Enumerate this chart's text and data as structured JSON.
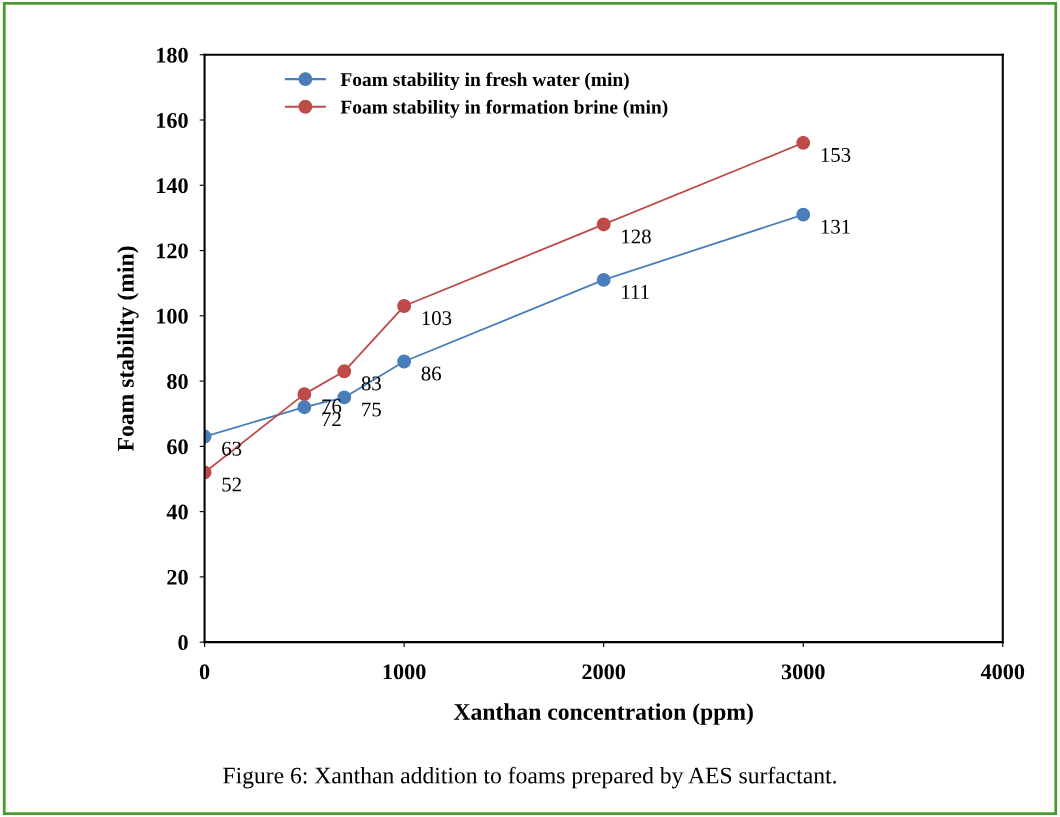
{
  "chart_data": {
    "type": "line",
    "xlabel": "Xanthan concentration (ppm)",
    "ylabel": "Foam stability (min)",
    "x": [
      0,
      500,
      700,
      1000,
      2000,
      3000
    ],
    "series": [
      {
        "name": "Foam stability in fresh water (min)",
        "color": "#4a7ebb",
        "values": [
          63,
          72,
          75,
          86,
          111,
          131
        ]
      },
      {
        "name": "Foam stability in formation brine (min)",
        "color": "#be4b48",
        "values": [
          52,
          76,
          83,
          103,
          128,
          153
        ]
      }
    ],
    "xlim": [
      0,
      4000
    ],
    "xticks": [
      0,
      1000,
      2000,
      3000,
      4000
    ],
    "ylim": [
      0,
      180
    ],
    "yticks": [
      0,
      20,
      40,
      60,
      80,
      100,
      120,
      140,
      160,
      180
    ],
    "grid": false,
    "legend": "top left",
    "marker": "circle",
    "line_style": "solid",
    "data_labels": true,
    "annotations": [
      "Figure 6: Xanthan addition to foams prepared by AES surfactant."
    ]
  }
}
